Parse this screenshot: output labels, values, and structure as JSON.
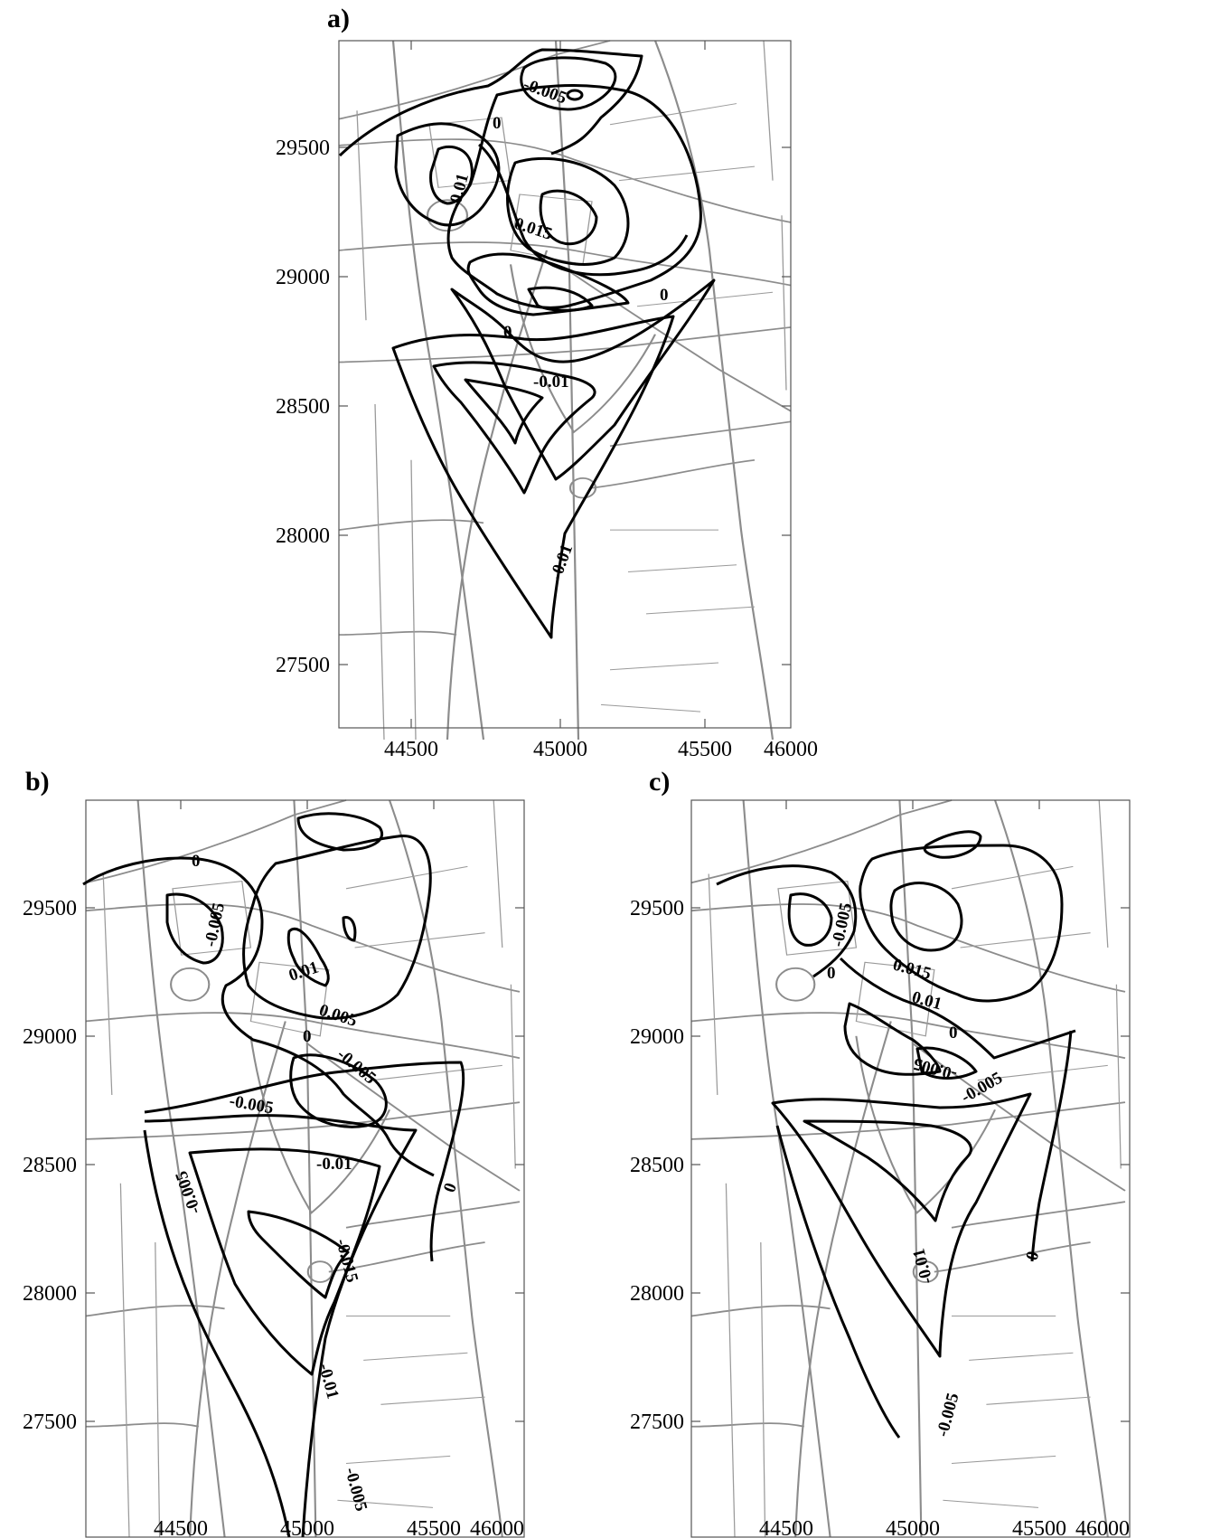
{
  "panels": [
    {
      "id": "a",
      "label": "a)",
      "x_ticks": [
        "44500",
        "45000",
        "45500",
        "46000"
      ],
      "y_ticks": [
        "29500",
        "29000",
        "28500",
        "28000",
        "27500"
      ],
      "contour_labels": [
        "-0.005",
        "0",
        "-0.01",
        "0.015",
        "0",
        "0",
        "-0.01",
        "-0.01"
      ]
    },
    {
      "id": "b",
      "label": "b)",
      "x_ticks": [
        "44500",
        "45000",
        "45500",
        "46000"
      ],
      "y_ticks": [
        "29500",
        "29000",
        "28500",
        "28000",
        "27500"
      ],
      "contour_labels": [
        "0",
        "-0.005",
        "0.01",
        "0.005",
        "0",
        "-0.005",
        "-0.005",
        "-0.01",
        "-0.015",
        "-0.005",
        "-0.01",
        "-0.005",
        "0"
      ]
    },
    {
      "id": "c",
      "label": "c)",
      "x_ticks": [
        "44500",
        "45000",
        "45500",
        "46000"
      ],
      "y_ticks": [
        "29500",
        "29000",
        "28500",
        "28000",
        "27500"
      ],
      "contour_labels": [
        "-0.005",
        "0",
        "0.015",
        "0.01",
        "0",
        "-0.005",
        "-0.005",
        "-0.01",
        "-0.005",
        "0"
      ]
    }
  ]
}
